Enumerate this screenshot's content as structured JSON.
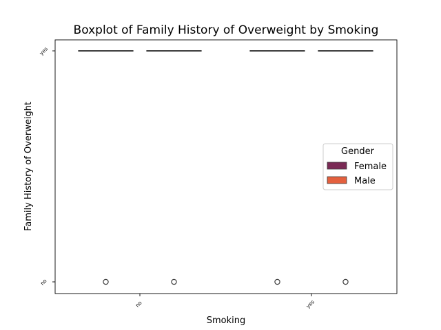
{
  "chart_data": {
    "type": "boxplot",
    "title": "Boxplot of Family History of Overweight by Smoking",
    "xlabel": "Smoking",
    "ylabel": "Family History of Overweight",
    "categories": [
      "no",
      "yes"
    ],
    "y_categories": [
      "no",
      "yes"
    ],
    "legend": {
      "title": "Gender",
      "placement": "center-right",
      "entries": [
        "Female",
        "Male"
      ]
    },
    "colors": {
      "Female": "#7a2a55",
      "Male": "#e4603e",
      "box_edge": "#3c3c3c",
      "axes": "#000000"
    },
    "series": [
      {
        "name": "Female",
        "boxes": [
          {
            "category": "no",
            "q1": "yes",
            "median": "yes",
            "q3": "yes",
            "whisker_low": "yes",
            "whisker_high": "yes",
            "outliers": [
              "no"
            ]
          },
          {
            "category": "yes",
            "q1": "yes",
            "median": "yes",
            "q3": "yes",
            "whisker_low": "yes",
            "whisker_high": "yes",
            "outliers": [
              "no"
            ]
          }
        ]
      },
      {
        "name": "Male",
        "boxes": [
          {
            "category": "no",
            "q1": "yes",
            "median": "yes",
            "q3": "yes",
            "whisker_low": "yes",
            "whisker_high": "yes",
            "outliers": [
              "no"
            ]
          },
          {
            "category": "yes",
            "q1": "yes",
            "median": "yes",
            "q3": "yes",
            "whisker_low": "yes",
            "whisker_high": "yes",
            "outliers": [
              "no"
            ]
          }
        ]
      }
    ],
    "grid": false
  }
}
